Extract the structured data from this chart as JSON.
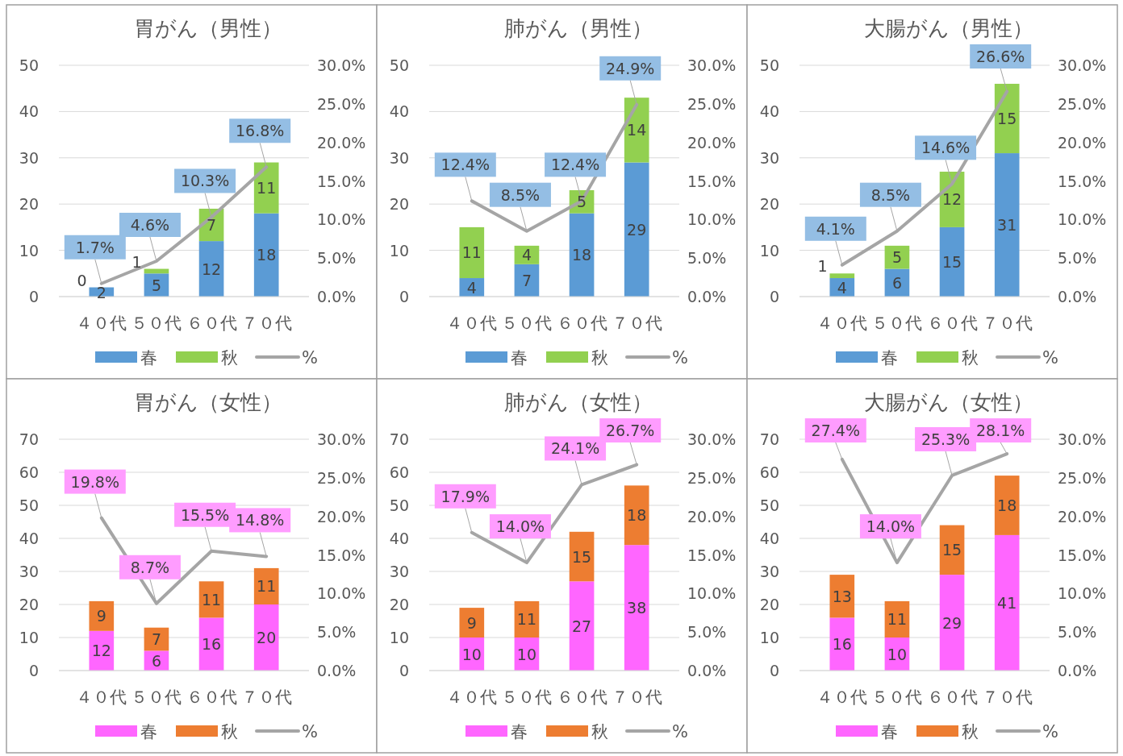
{
  "chart_data": [
    {
      "type": "bar",
      "title": "胃がん（男性）",
      "categories": [
        "４０代",
        "５０代",
        "６０代",
        "７０代"
      ],
      "stacked": true,
      "data_labels": true,
      "grid": "y",
      "legend": "bottom",
      "ylim": [
        0,
        50
      ],
      "yticks": [
        0,
        10,
        20,
        30,
        40,
        50
      ],
      "y2lim": [
        0,
        30
      ],
      "y2ticks": [
        {
          "value": 0,
          "label": "0.0%"
        },
        {
          "value": 5,
          "label": "5.0%"
        },
        {
          "value": 10,
          "label": "10.0%"
        },
        {
          "value": 15,
          "label": "15.0%"
        },
        {
          "value": 20,
          "label": "20.0%"
        },
        {
          "value": 25,
          "label": "25.0%"
        },
        {
          "value": 30,
          "label": "30.0%"
        }
      ],
      "series": [
        {
          "name": "春",
          "color": "#5b9bd5",
          "values": [
            2,
            5,
            12,
            18
          ]
        },
        {
          "name": "秋",
          "color": "#92d050",
          "values": [
            0,
            1,
            7,
            11
          ]
        },
        {
          "name": "%",
          "type": "line",
          "axis": "y2",
          "color": "#a5a5a5",
          "values": [
            1.7,
            4.6,
            10.3,
            16.8
          ],
          "value_labels": [
            "1.7%",
            "4.6%",
            "10.3%",
            "16.8%"
          ]
        }
      ]
    },
    {
      "type": "bar",
      "title": "肺がん（男性）",
      "categories": [
        "４０代",
        "５０代",
        "６０代",
        "７０代"
      ],
      "stacked": true,
      "data_labels": true,
      "grid": "y",
      "legend": "bottom",
      "ylim": [
        0,
        50
      ],
      "yticks": [
        0,
        10,
        20,
        30,
        40,
        50
      ],
      "y2lim": [
        0,
        30
      ],
      "y2ticks": [
        {
          "value": 0,
          "label": "0.0%"
        },
        {
          "value": 5,
          "label": "5.0%"
        },
        {
          "value": 10,
          "label": "10.0%"
        },
        {
          "value": 15,
          "label": "15.0%"
        },
        {
          "value": 20,
          "label": "20.0%"
        },
        {
          "value": 25,
          "label": "25.0%"
        },
        {
          "value": 30,
          "label": "30.0%"
        }
      ],
      "series": [
        {
          "name": "春",
          "color": "#5b9bd5",
          "values": [
            4,
            7,
            18,
            29
          ]
        },
        {
          "name": "秋",
          "color": "#92d050",
          "values": [
            11,
            4,
            5,
            14
          ]
        },
        {
          "name": "%",
          "type": "line",
          "axis": "y2",
          "color": "#a5a5a5",
          "values": [
            12.4,
            8.5,
            12.4,
            24.9
          ],
          "value_labels": [
            "12.4%",
            "8.5%",
            "12.4%",
            "24.9%"
          ]
        }
      ]
    },
    {
      "type": "bar",
      "title": "大腸がん（男性）",
      "categories": [
        "４０代",
        "５０代",
        "６０代",
        "７０代"
      ],
      "stacked": true,
      "data_labels": true,
      "grid": "y",
      "legend": "bottom",
      "ylim": [
        0,
        50
      ],
      "yticks": [
        0,
        10,
        20,
        30,
        40,
        50
      ],
      "y2lim": [
        0,
        30
      ],
      "y2ticks": [
        {
          "value": 0,
          "label": "0.0%"
        },
        {
          "value": 5,
          "label": "5.0%"
        },
        {
          "value": 10,
          "label": "10.0%"
        },
        {
          "value": 15,
          "label": "15.0%"
        },
        {
          "value": 20,
          "label": "20.0%"
        },
        {
          "value": 25,
          "label": "25.0%"
        },
        {
          "value": 30,
          "label": "30.0%"
        }
      ],
      "series": [
        {
          "name": "春",
          "color": "#5b9bd5",
          "values": [
            4,
            6,
            15,
            31
          ]
        },
        {
          "name": "秋",
          "color": "#92d050",
          "values": [
            1,
            5,
            12,
            15
          ]
        },
        {
          "name": "%",
          "type": "line",
          "axis": "y2",
          "color": "#a5a5a5",
          "values": [
            4.1,
            8.5,
            14.6,
            26.6
          ],
          "value_labels": [
            "4.1%",
            "8.5%",
            "14.6%",
            "26.6%"
          ]
        }
      ]
    },
    {
      "type": "bar",
      "title": "胃がん（女性）",
      "categories": [
        "４０代",
        "５０代",
        "６０代",
        "７０代"
      ],
      "stacked": true,
      "data_labels": true,
      "grid": "y",
      "legend": "bottom",
      "ylim": [
        0,
        70
      ],
      "yticks": [
        0,
        10,
        20,
        30,
        40,
        50,
        60,
        70
      ],
      "y2lim": [
        0,
        30
      ],
      "y2ticks": [
        {
          "value": 0,
          "label": "0.0%"
        },
        {
          "value": 5,
          "label": "5.0%"
        },
        {
          "value": 10,
          "label": "10.0%"
        },
        {
          "value": 15,
          "label": "15.0%"
        },
        {
          "value": 20,
          "label": "20.0%"
        },
        {
          "value": 25,
          "label": "25.0%"
        },
        {
          "value": 30,
          "label": "30.0%"
        }
      ],
      "series": [
        {
          "name": "春",
          "color": "#ff66ff",
          "values": [
            12,
            6,
            16,
            20
          ]
        },
        {
          "name": "秋",
          "color": "#ed7d31",
          "values": [
            9,
            7,
            11,
            11
          ]
        },
        {
          "name": "%",
          "type": "line",
          "axis": "y2",
          "color": "#a5a5a5",
          "values": [
            19.8,
            8.7,
            15.5,
            14.8
          ],
          "value_labels": [
            "19.8%",
            "8.7%",
            "15.5%",
            "14.8%"
          ]
        }
      ]
    },
    {
      "type": "bar",
      "title": "肺がん（女性）",
      "categories": [
        "４０代",
        "５０代",
        "６０代",
        "７０代"
      ],
      "stacked": true,
      "data_labels": true,
      "grid": "y",
      "legend": "bottom",
      "ylim": [
        0,
        70
      ],
      "yticks": [
        0,
        10,
        20,
        30,
        40,
        50,
        60,
        70
      ],
      "y2lim": [
        0,
        30
      ],
      "y2ticks": [
        {
          "value": 0,
          "label": "0.0%"
        },
        {
          "value": 5,
          "label": "5.0%"
        },
        {
          "value": 10,
          "label": "10.0%"
        },
        {
          "value": 15,
          "label": "15.0%"
        },
        {
          "value": 20,
          "label": "20.0%"
        },
        {
          "value": 25,
          "label": "25.0%"
        },
        {
          "value": 30,
          "label": "30.0%"
        }
      ],
      "series": [
        {
          "name": "春",
          "color": "#ff66ff",
          "values": [
            10,
            10,
            27,
            38
          ]
        },
        {
          "name": "秋",
          "color": "#ed7d31",
          "values": [
            9,
            11,
            15,
            18
          ]
        },
        {
          "name": "%",
          "type": "line",
          "axis": "y2",
          "color": "#a5a5a5",
          "values": [
            17.9,
            14.0,
            24.1,
            26.7
          ],
          "value_labels": [
            "17.9%",
            "14.0%",
            "24.1%",
            "26.7%"
          ]
        }
      ]
    },
    {
      "type": "bar",
      "title": "大腸がん（女性）",
      "categories": [
        "４０代",
        "５０代",
        "６０代",
        "７０代"
      ],
      "stacked": true,
      "data_labels": true,
      "grid": "y",
      "legend": "bottom",
      "ylim": [
        0,
        70
      ],
      "yticks": [
        0,
        10,
        20,
        30,
        40,
        50,
        60,
        70
      ],
      "y2lim": [
        0,
        30
      ],
      "y2ticks": [
        {
          "value": 0,
          "label": "0.0%"
        },
        {
          "value": 5,
          "label": "5.0%"
        },
        {
          "value": 10,
          "label": "10.0%"
        },
        {
          "value": 15,
          "label": "15.0%"
        },
        {
          "value": 20,
          "label": "20.0%"
        },
        {
          "value": 25,
          "label": "25.0%"
        },
        {
          "value": 30,
          "label": "30.0%"
        }
      ],
      "series": [
        {
          "name": "春",
          "color": "#ff66ff",
          "values": [
            16,
            10,
            29,
            41
          ]
        },
        {
          "name": "秋",
          "color": "#ed7d31",
          "values": [
            13,
            11,
            15,
            18
          ]
        },
        {
          "name": "%",
          "type": "line",
          "axis": "y2",
          "color": "#a5a5a5",
          "values": [
            27.4,
            14.0,
            25.3,
            28.1
          ],
          "value_labels": [
            "27.4%",
            "14.0%",
            "25.3%",
            "28.1%"
          ]
        }
      ]
    }
  ]
}
